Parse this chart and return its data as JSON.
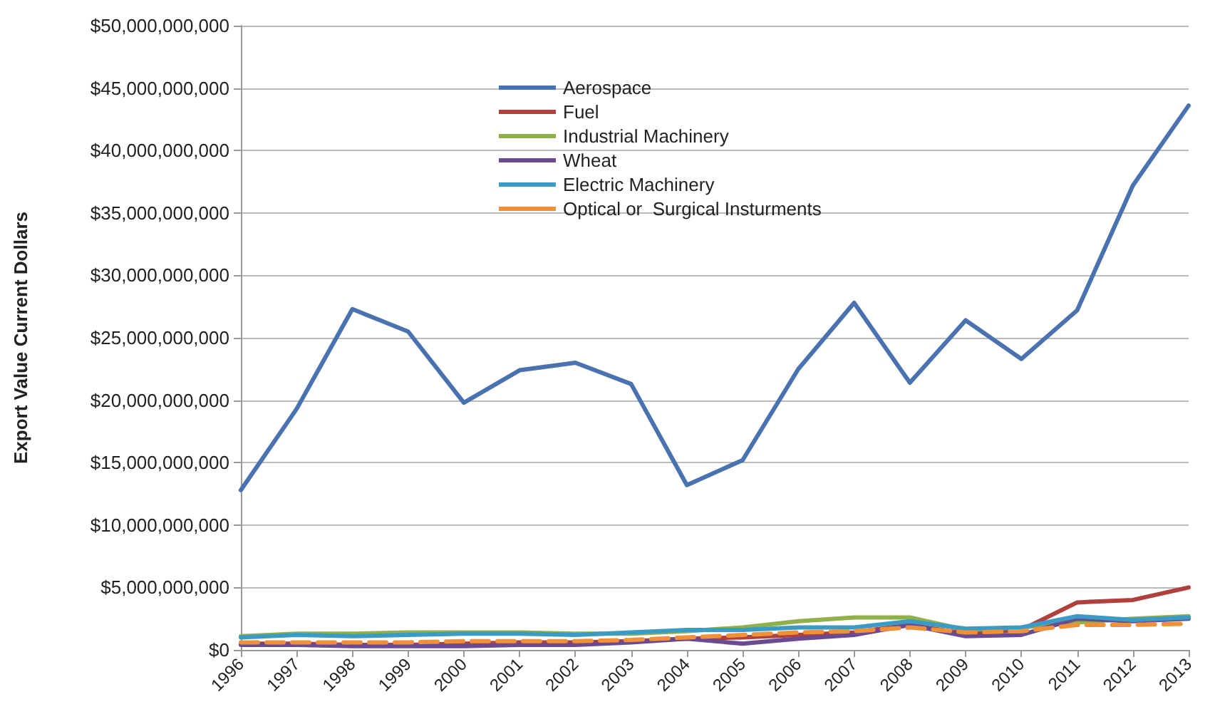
{
  "chart_data": {
    "type": "line",
    "ylabel": "Export Value Current Dollars",
    "categories": [
      "1996",
      "1997",
      "1998",
      "1999",
      "2000",
      "2001",
      "2002",
      "2003",
      "2004",
      "2005",
      "2006",
      "2007",
      "2008",
      "2009",
      "2010",
      "2011",
      "2012",
      "2013"
    ],
    "series": [
      {
        "name": "Aerospace",
        "color": "#4a72b0",
        "values": [
          12800000000,
          19300000000,
          27300000000,
          25500000000,
          19800000000,
          22400000000,
          23000000000,
          21300000000,
          13200000000,
          15200000000,
          22500000000,
          27800000000,
          21400000000,
          26400000000,
          23300000000,
          27200000000,
          37200000000,
          43600000000
        ]
      },
      {
        "name": "Fuel",
        "color": "#b0403c",
        "values": [
          500000000,
          500000000,
          400000000,
          400000000,
          500000000,
          600000000,
          600000000,
          700000000,
          900000000,
          1000000000,
          1200000000,
          1400000000,
          2000000000,
          1300000000,
          1600000000,
          3800000000,
          4000000000,
          5000000000
        ]
      },
      {
        "name": "Industrial Machinery",
        "color": "#8fb04a",
        "values": [
          1100000000,
          1300000000,
          1300000000,
          1400000000,
          1400000000,
          1400000000,
          1300000000,
          1300000000,
          1500000000,
          1800000000,
          2300000000,
          2600000000,
          2600000000,
          1600000000,
          1800000000,
          2200000000,
          2500000000,
          2700000000
        ]
      },
      {
        "name": "Wheat",
        "color": "#6a4a90",
        "values": [
          400000000,
          400000000,
          300000000,
          300000000,
          300000000,
          400000000,
          400000000,
          600000000,
          900000000,
          500000000,
          900000000,
          1200000000,
          2000000000,
          1100000000,
          1200000000,
          2500000000,
          2300000000,
          2500000000
        ]
      },
      {
        "name": "Electric Machinery",
        "color": "#3b9bc4",
        "values": [
          1000000000,
          1200000000,
          1100000000,
          1200000000,
          1300000000,
          1300000000,
          1200000000,
          1400000000,
          1600000000,
          1600000000,
          1800000000,
          1800000000,
          2300000000,
          1700000000,
          1800000000,
          2700000000,
          2400000000,
          2600000000
        ]
      },
      {
        "name": "Optical or  Surgical Insturments",
        "color": "#f0913a",
        "line_style": "dashed",
        "values": [
          600000000,
          600000000,
          600000000,
          600000000,
          700000000,
          700000000,
          700000000,
          800000000,
          1000000000,
          1200000000,
          1400000000,
          1500000000,
          1800000000,
          1400000000,
          1500000000,
          2000000000,
          2000000000,
          2100000000
        ]
      }
    ],
    "ylim": [
      0,
      50000000000
    ],
    "yticks": [
      {
        "value": 0,
        "label": "$0"
      },
      {
        "value": 5000000000,
        "label": "$5,000,000,000"
      },
      {
        "value": 10000000000,
        "label": "$10,000,000,000"
      },
      {
        "value": 15000000000,
        "label": "$15,000,000,000"
      },
      {
        "value": 20000000000,
        "label": "$20,000,000,000"
      },
      {
        "value": 25000000000,
        "label": "$25,000,000,000"
      },
      {
        "value": 30000000000,
        "label": "$30,000,000,000"
      },
      {
        "value": 35000000000,
        "label": "$35,000,000,000"
      },
      {
        "value": 40000000000,
        "label": "$40,000,000,000"
      },
      {
        "value": 45000000000,
        "label": "$45,000,000,000"
      },
      {
        "value": 50000000000,
        "label": "$50,000,000,000"
      }
    ],
    "grid": "y",
    "legend": "top",
    "marker": "none",
    "line_style": "solid"
  }
}
